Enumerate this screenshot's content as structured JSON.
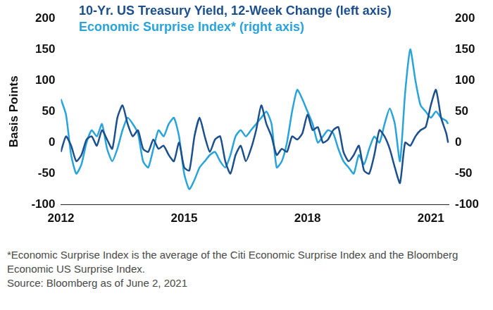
{
  "chart_data": {
    "type": "line",
    "y_label": "Basis Points",
    "footnote": "*Economic Surprise Index is the average of the Citi Economic Surprise Index and the Bloomberg Economic US Surprise Index.",
    "source": "Source: Bloomberg as of June 2, 2021",
    "legend": "top-left",
    "grid": false,
    "xlim": [
      2012,
      2021.45
    ],
    "xticks": [
      2012,
      2015,
      2018,
      2021
    ],
    "ylim": [
      -100,
      200
    ],
    "yticks": [
      -100,
      -50,
      0,
      50,
      100,
      150,
      200
    ],
    "y2lim": [
      -100,
      200
    ],
    "y2ticks": [
      -100,
      -50,
      0,
      50,
      100,
      150,
      200
    ],
    "x": [
      2012,
      2012.125,
      2012.25,
      2012.375,
      2012.5,
      2012.625,
      2012.75,
      2012.875,
      2013,
      2013.125,
      2013.25,
      2013.375,
      2013.5,
      2013.625,
      2013.75,
      2013.875,
      2014,
      2014.125,
      2014.25,
      2014.375,
      2014.5,
      2014.625,
      2014.75,
      2014.875,
      2015,
      2015.125,
      2015.25,
      2015.375,
      2015.5,
      2015.625,
      2015.75,
      2015.875,
      2016,
      2016.125,
      2016.25,
      2016.375,
      2016.5,
      2016.625,
      2016.75,
      2016.875,
      2017,
      2017.125,
      2017.25,
      2017.375,
      2017.5,
      2017.625,
      2017.75,
      2017.875,
      2018,
      2018.125,
      2018.25,
      2018.375,
      2018.5,
      2018.625,
      2018.75,
      2018.875,
      2019,
      2019.125,
      2019.25,
      2019.375,
      2019.5,
      2019.625,
      2019.75,
      2019.875,
      2020,
      2020.125,
      2020.25,
      2020.375,
      2020.5,
      2020.625,
      2020.75,
      2020.875,
      2021,
      2021.125,
      2021.25,
      2021.375,
      2021.42
    ],
    "series": [
      {
        "name": "Economic Surprise Index* (right axis)",
        "color": "#29a3dc",
        "axis": "y2",
        "values": [
          70,
          45,
          -20,
          -50,
          -35,
          0,
          20,
          10,
          30,
          -10,
          -30,
          -10,
          20,
          40,
          30,
          15,
          -30,
          -40,
          -10,
          20,
          10,
          30,
          40,
          10,
          -50,
          -75,
          -60,
          -40,
          -30,
          -20,
          -15,
          -30,
          -40,
          -20,
          10,
          20,
          10,
          20,
          30,
          40,
          50,
          30,
          -40,
          -30,
          0,
          50,
          85,
          70,
          50,
          30,
          0,
          10,
          20,
          15,
          -10,
          -30,
          -40,
          -50,
          -20,
          -35,
          -10,
          10,
          0,
          30,
          55,
          30,
          -30,
          80,
          150,
          100,
          60,
          50,
          40,
          50,
          40,
          35,
          30
        ]
      },
      {
        "name": "10-Yr. US Treasury Yield, 12-Week Change (left axis)",
        "color": "#1c4f8e",
        "axis": "y",
        "values": [
          -15,
          10,
          -5,
          -30,
          -20,
          5,
          10,
          -5,
          20,
          5,
          -10,
          40,
          60,
          30,
          10,
          20,
          -10,
          -15,
          5,
          -10,
          -5,
          -20,
          -30,
          0,
          -40,
          -45,
          10,
          40,
          10,
          -15,
          5,
          10,
          -30,
          -50,
          -20,
          -5,
          -30,
          -10,
          20,
          60,
          30,
          10,
          -20,
          -10,
          -15,
          10,
          5,
          15,
          45,
          20,
          25,
          0,
          5,
          20,
          25,
          -15,
          -30,
          -20,
          -5,
          -45,
          -50,
          -20,
          20,
          10,
          -10,
          -40,
          -65,
          0,
          -5,
          10,
          20,
          25,
          60,
          85,
          40,
          15,
          0
        ]
      }
    ]
  }
}
